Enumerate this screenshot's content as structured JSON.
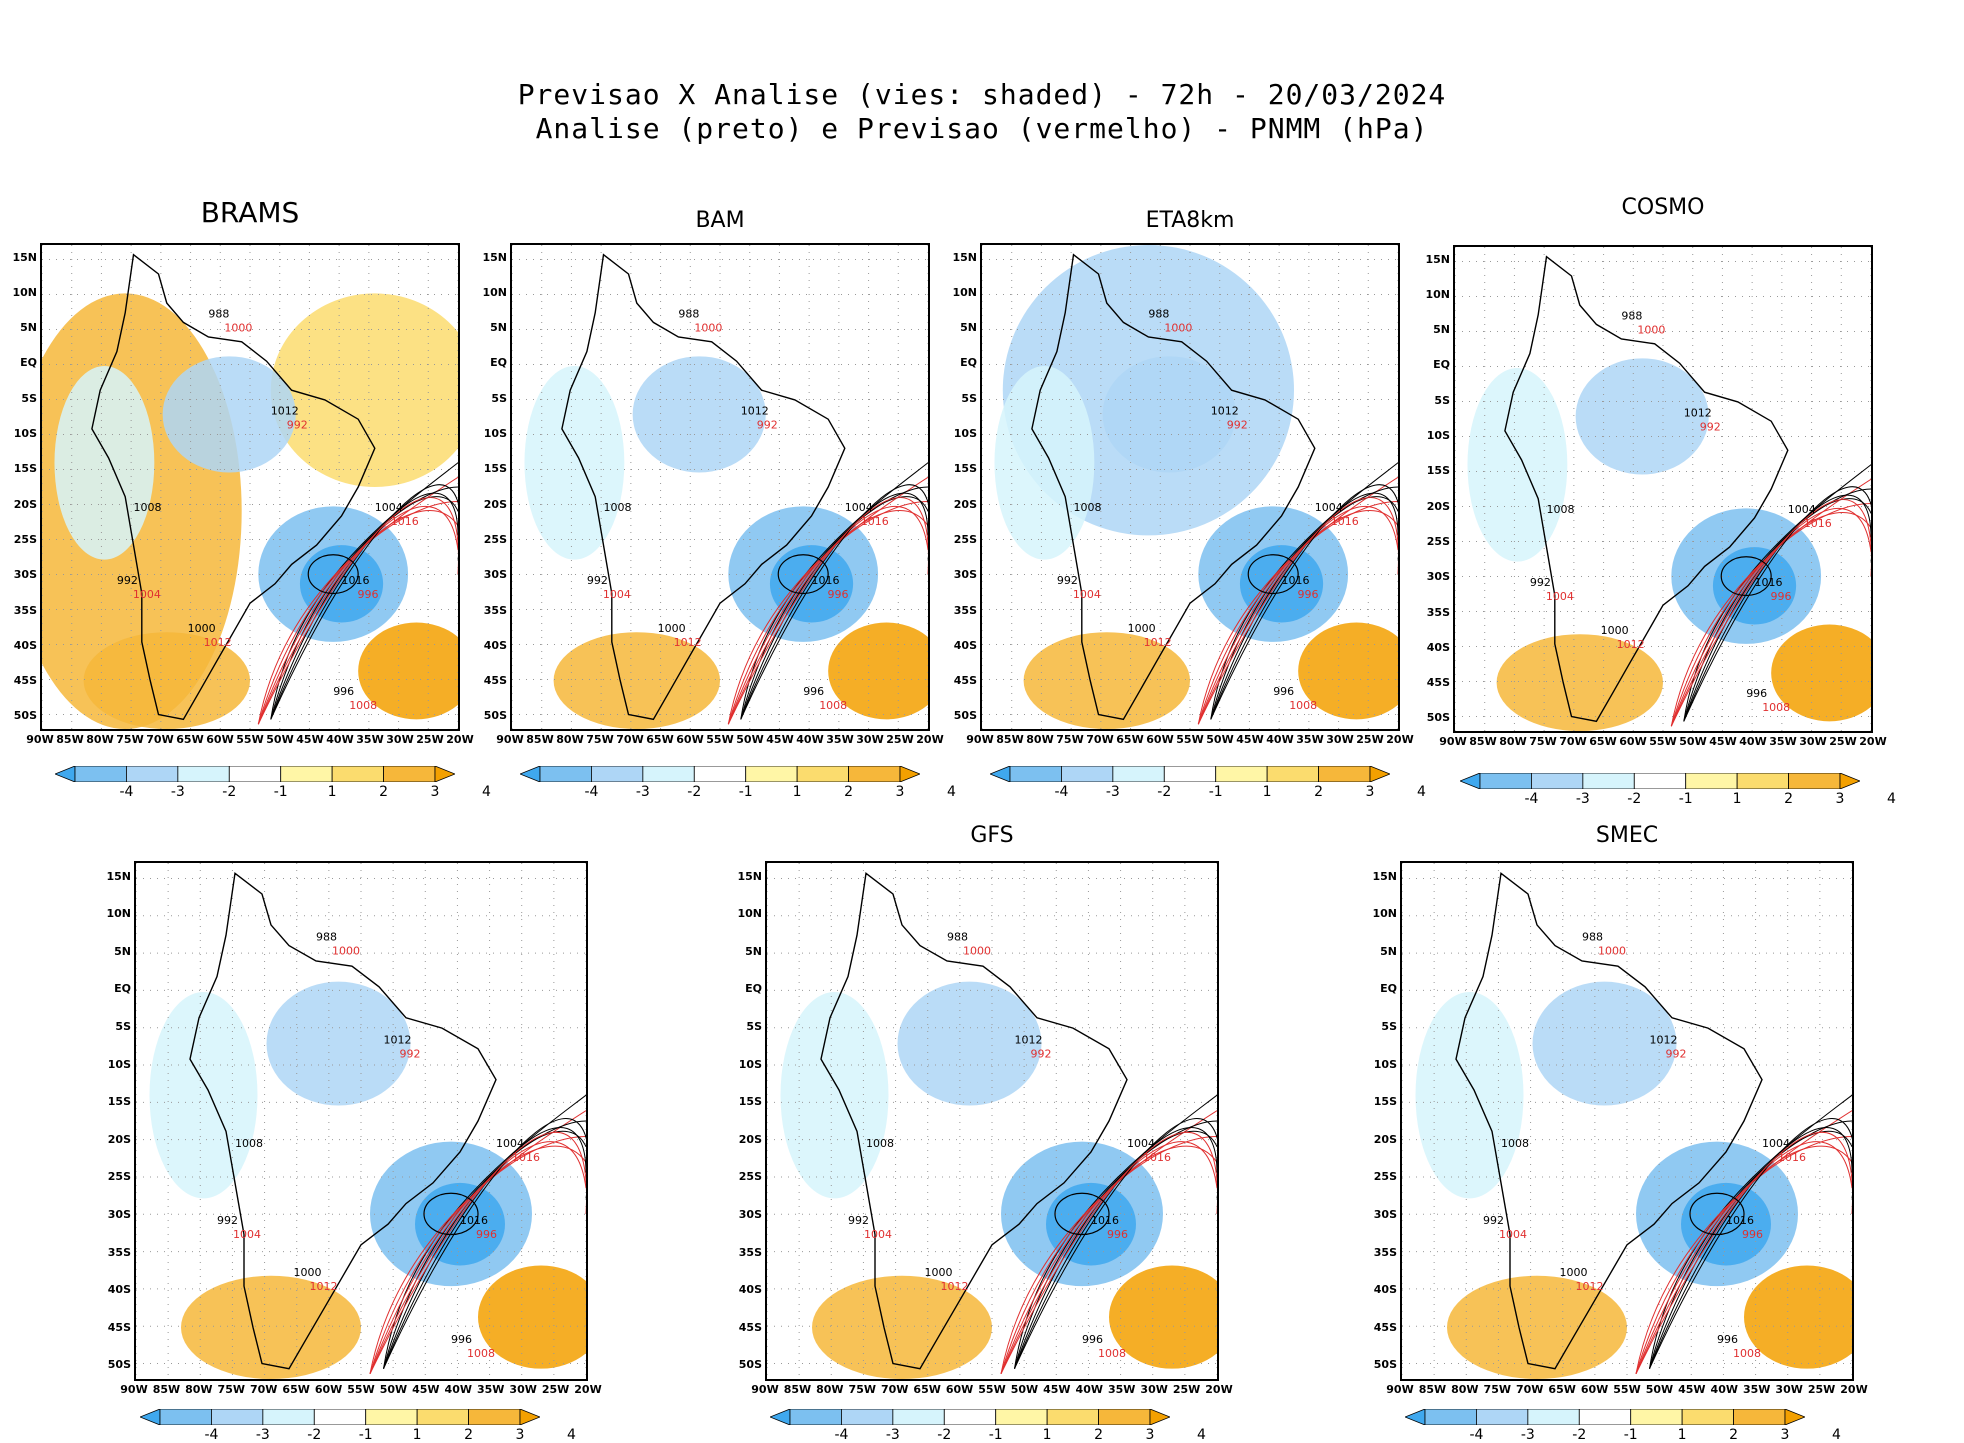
{
  "title": {
    "line1": "Previsao X Analise (vies: shaded) - 72h - 20/03/2024",
    "line2": "Analise (preto) e Previsao (vermelho) - PNMM (hPa)"
  },
  "panels": [
    {
      "id": "brams",
      "name": "BRAMS"
    },
    {
      "id": "bam",
      "name": "BAM"
    },
    {
      "id": "eta",
      "name": "ETA8km"
    },
    {
      "id": "cosmo",
      "name": "COSMO"
    },
    {
      "id": "unnamed",
      "name": ""
    },
    {
      "id": "gfs",
      "name": "GFS"
    },
    {
      "id": "smec",
      "name": "SMEC"
    }
  ],
  "lat_ticks": [
    "15N",
    "10N",
    "5N",
    "EQ",
    "5S",
    "10S",
    "15S",
    "20S",
    "25S",
    "30S",
    "35S",
    "40S",
    "45S",
    "50S"
  ],
  "lon_ticks": [
    "90W",
    "85W",
    "80W",
    "75W",
    "70W",
    "65W",
    "60W",
    "55W",
    "50W",
    "45W",
    "40W",
    "35W",
    "30W",
    "25W",
    "20W"
  ],
  "colorbar": {
    "labels": [
      "-4",
      "-3",
      "-2",
      "-1",
      "1",
      "2",
      "3",
      "4"
    ],
    "colors": [
      "#3fa8ee",
      "#7cc0f0",
      "#aed6f6",
      "#d6f4fc",
      "#ffffff",
      "#fff6a6",
      "#fbdc6e",
      "#f6b73a",
      "#f3a000"
    ]
  },
  "contour_labels": {
    "analysis": [
      "1016",
      "1012",
      "1008",
      "1004",
      "1000",
      "996",
      "992",
      "988"
    ],
    "forecast": [
      "1016",
      "1012",
      "1008",
      "1004",
      "1000",
      "996",
      "992"
    ]
  },
  "colors": {
    "analysis": "#000000",
    "forecast": "#e03030"
  }
}
